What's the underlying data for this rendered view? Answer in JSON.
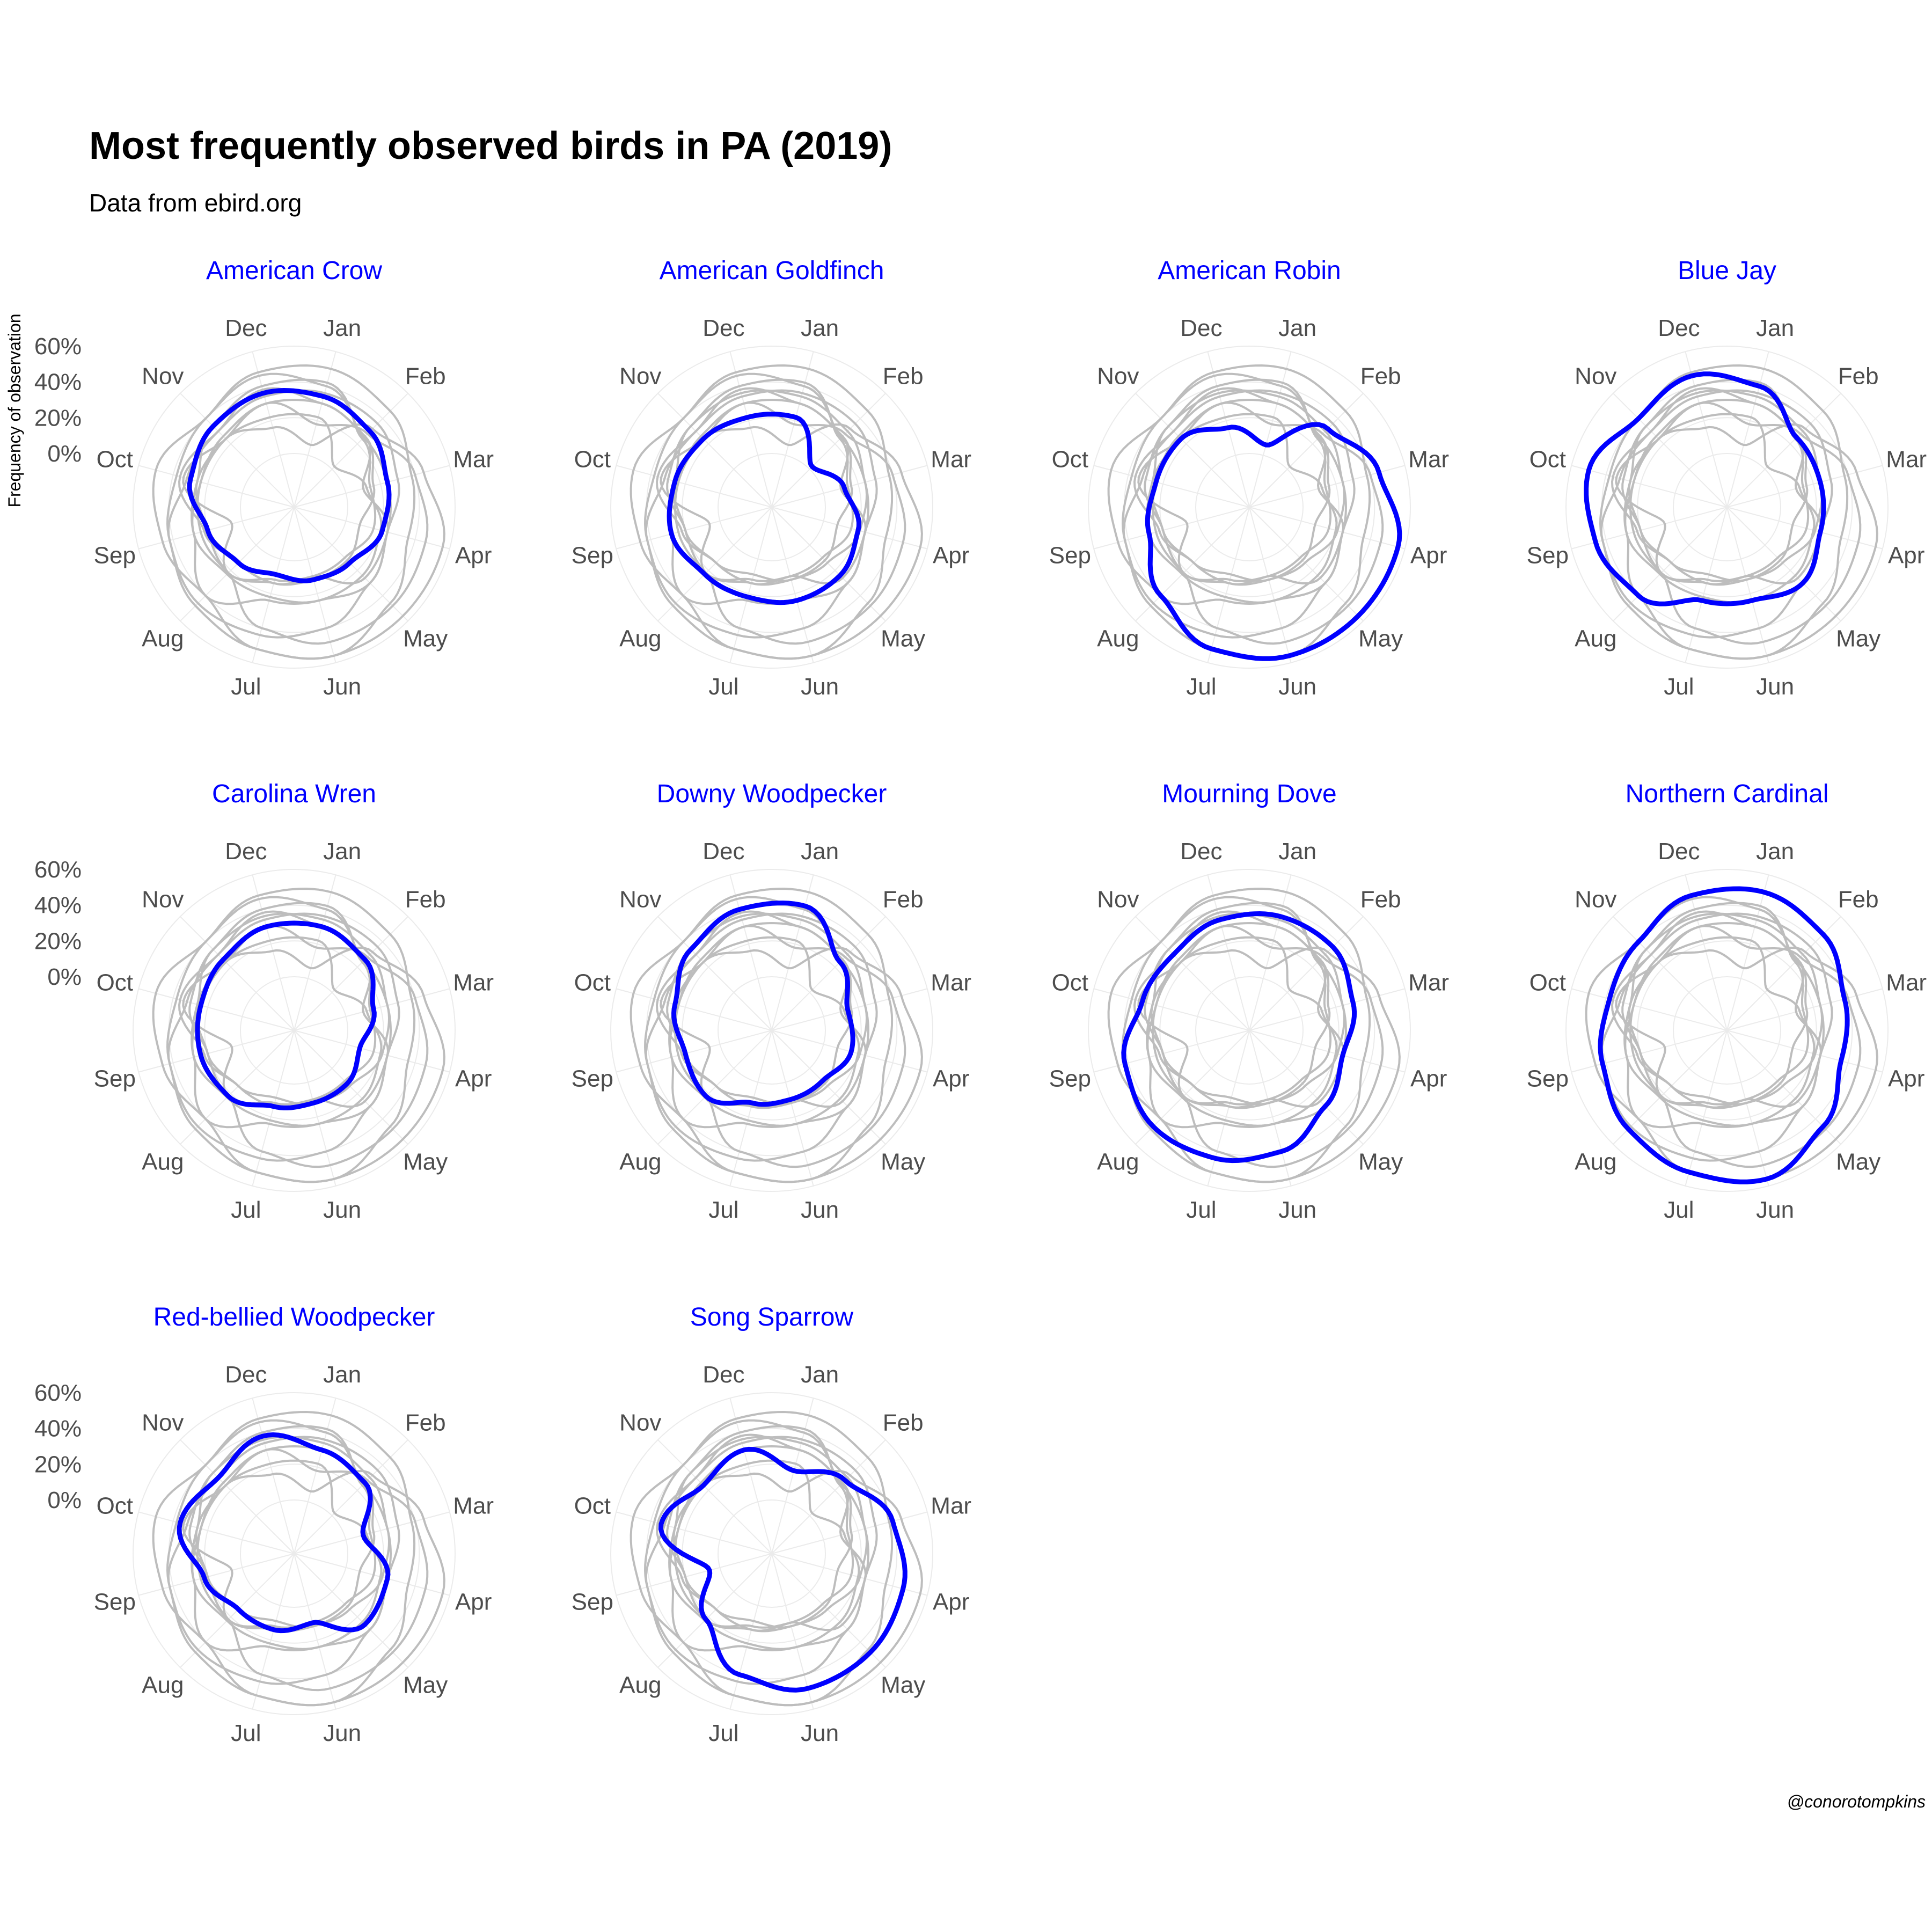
{
  "title": "Most frequently observed birds in PA (2019)",
  "subtitle": "Data from ebird.org",
  "y_axis_label": "Frequency of observation",
  "caption": "@conorotompkins",
  "colors": {
    "highlight": "#0000ff",
    "background_series": "#bdbdbd",
    "grid": "#ebebeb",
    "axis_text": "#4d4d4d"
  },
  "chart_data": {
    "type": "line",
    "coord": "polar",
    "months": [
      "Jan",
      "Feb",
      "Mar",
      "Apr",
      "May",
      "Jun",
      "Jul",
      "Aug",
      "Sep",
      "Oct",
      "Nov",
      "Dec"
    ],
    "y_ticks": [
      "0%",
      "20%",
      "40%",
      "60%"
    ],
    "ylim": [
      -0.3,
      0.6
    ],
    "panels": [
      {
        "name": "American Crow",
        "values": [
          0.34,
          0.3,
          0.24,
          0.21,
          0.14,
          0.12,
          0.09,
          0.14,
          0.2,
          0.3,
          0.34,
          0.36
        ]
      },
      {
        "name": "American Goldfinch",
        "values": [
          0.22,
          0.02,
          0.12,
          0.2,
          0.24,
          0.24,
          0.22,
          0.23,
          0.28,
          0.26,
          0.24,
          0.22
        ]
      },
      {
        "name": "American Robin",
        "values": [
          0.06,
          0.32,
          0.45,
          0.56,
          0.56,
          0.56,
          0.52,
          0.4,
          0.28,
          0.24,
          0.24,
          0.16
        ]
      },
      {
        "name": "Blue Jay",
        "values": [
          0.4,
          0.25,
          0.24,
          0.24,
          0.3,
          0.24,
          0.24,
          0.4,
          0.46,
          0.5,
          0.4,
          0.46
        ]
      },
      {
        "name": "Carolina Wren",
        "values": [
          0.3,
          0.26,
          0.16,
          0.08,
          0.12,
          0.12,
          0.14,
          0.22,
          0.24,
          0.24,
          0.26,
          0.3
        ]
      },
      {
        "name": "Downy Woodpecker",
        "values": [
          0.42,
          0.24,
          0.14,
          0.16,
          0.1,
          0.1,
          0.12,
          0.22,
          0.2,
          0.26,
          0.34,
          0.4
        ]
      },
      {
        "name": "Mourning Dove",
        "values": [
          0.36,
          0.36,
          0.3,
          0.24,
          0.3,
          0.4,
          0.44,
          0.46,
          0.42,
          0.32,
          0.3,
          0.34
        ]
      },
      {
        "name": "Northern Cardinal",
        "values": [
          0.5,
          0.46,
          0.38,
          0.36,
          0.46,
          0.56,
          0.52,
          0.48,
          0.42,
          0.38,
          0.4,
          0.48
        ]
      },
      {
        "name": "Red-bellied Woodpecker",
        "values": [
          0.3,
          0.26,
          0.1,
          0.24,
          0.26,
          0.1,
          0.14,
          0.14,
          0.22,
          0.36,
          0.3,
          0.38
        ]
      },
      {
        "name": "Song Sparrow",
        "values": [
          0.18,
          0.28,
          0.4,
          0.46,
          0.48,
          0.48,
          0.4,
          0.22,
          0.06,
          0.34,
          0.24,
          0.3
        ]
      }
    ]
  }
}
